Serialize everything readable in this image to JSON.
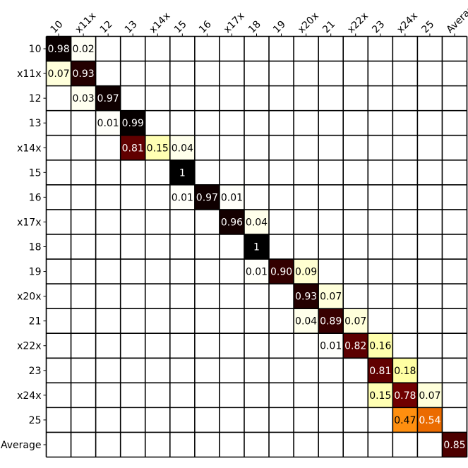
{
  "chart_data": {
    "type": "heatmap",
    "colormap": "afmhot_r",
    "vmin": 0,
    "vmax": 1,
    "grid": true,
    "col_labels": [
      "10",
      "x11x",
      "12",
      "13",
      "x14x",
      "15",
      "16",
      "x17x",
      "18",
      "19",
      "x20x",
      "21",
      "x22x",
      "23",
      "x24x",
      "25",
      "Average"
    ],
    "row_labels": [
      "10",
      "x11x",
      "12",
      "13",
      "x14x",
      "15",
      "16",
      "x17x",
      "18",
      "19",
      "x20x",
      "21",
      "x22x",
      "23",
      "x24x",
      "25",
      "Average"
    ],
    "cells": [
      {
        "row": 0,
        "col": 0,
        "value": 0.98,
        "label": "0.98"
      },
      {
        "row": 0,
        "col": 1,
        "value": 0.02,
        "label": "0.02"
      },
      {
        "row": 1,
        "col": 0,
        "value": 0.07,
        "label": "0.07"
      },
      {
        "row": 1,
        "col": 1,
        "value": 0.93,
        "label": "0.93"
      },
      {
        "row": 2,
        "col": 1,
        "value": 0.03,
        "label": "0.03"
      },
      {
        "row": 2,
        "col": 2,
        "value": 0.97,
        "label": "0.97"
      },
      {
        "row": 3,
        "col": 2,
        "value": 0.01,
        "label": "0.01"
      },
      {
        "row": 3,
        "col": 3,
        "value": 0.99,
        "label": "0.99"
      },
      {
        "row": 4,
        "col": 3,
        "value": 0.81,
        "label": "0.81"
      },
      {
        "row": 4,
        "col": 4,
        "value": 0.15,
        "label": "0.15"
      },
      {
        "row": 4,
        "col": 5,
        "value": 0.04,
        "label": "0.04"
      },
      {
        "row": 5,
        "col": 5,
        "value": 1,
        "label": "1"
      },
      {
        "row": 6,
        "col": 5,
        "value": 0.01,
        "label": "0.01"
      },
      {
        "row": 6,
        "col": 6,
        "value": 0.97,
        "label": "0.97"
      },
      {
        "row": 6,
        "col": 7,
        "value": 0.01,
        "label": "0.01"
      },
      {
        "row": 7,
        "col": 7,
        "value": 0.96,
        "label": "0.96"
      },
      {
        "row": 7,
        "col": 8,
        "value": 0.04,
        "label": "0.04"
      },
      {
        "row": 8,
        "col": 8,
        "value": 1,
        "label": "1"
      },
      {
        "row": 9,
        "col": 8,
        "value": 0.01,
        "label": "0.01"
      },
      {
        "row": 9,
        "col": 9,
        "value": 0.9,
        "label": "0.90"
      },
      {
        "row": 9,
        "col": 10,
        "value": 0.09,
        "label": "0.09"
      },
      {
        "row": 10,
        "col": 10,
        "value": 0.93,
        "label": "0.93"
      },
      {
        "row": 10,
        "col": 11,
        "value": 0.07,
        "label": "0.07"
      },
      {
        "row": 11,
        "col": 10,
        "value": 0.04,
        "label": "0.04"
      },
      {
        "row": 11,
        "col": 11,
        "value": 0.89,
        "label": "0.89"
      },
      {
        "row": 11,
        "col": 12,
        "value": 0.07,
        "label": "0.07"
      },
      {
        "row": 12,
        "col": 11,
        "value": 0.01,
        "label": "0.01"
      },
      {
        "row": 12,
        "col": 12,
        "value": 0.82,
        "label": "0.82"
      },
      {
        "row": 12,
        "col": 13,
        "value": 0.16,
        "label": "0.16"
      },
      {
        "row": 13,
        "col": 13,
        "value": 0.81,
        "label": "0.81"
      },
      {
        "row": 13,
        "col": 14,
        "value": 0.18,
        "label": "0.18"
      },
      {
        "row": 14,
        "col": 13,
        "value": 0.15,
        "label": "0.15"
      },
      {
        "row": 14,
        "col": 14,
        "value": 0.78,
        "label": "0.78"
      },
      {
        "row": 14,
        "col": 15,
        "value": 0.07,
        "label": "0.07"
      },
      {
        "row": 15,
        "col": 14,
        "value": 0.47,
        "label": "0.47"
      },
      {
        "row": 15,
        "col": 15,
        "value": 0.54,
        "label": "0.54"
      },
      {
        "row": 16,
        "col": 16,
        "value": 0.85,
        "label": "0.85"
      }
    ]
  }
}
